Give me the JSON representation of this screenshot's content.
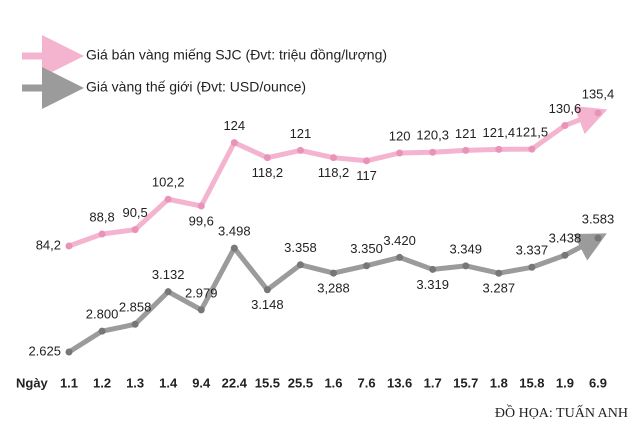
{
  "chart_data": {
    "type": "line",
    "x_label": "Ngày",
    "credit": "ĐỒ HỌA: TUẤN ANH",
    "categories": [
      "1.1",
      "1.2",
      "1.3",
      "1.4",
      "9.4",
      "22.4",
      "15.5",
      "25.5",
      "1.6",
      "7.6",
      "13.6",
      "1.7",
      "15.7",
      "1.8",
      "15.8",
      "1.9",
      "6.9"
    ],
    "series": [
      {
        "name": "Giá bán vàng miếng SJC (Đvt: triệu đồng/lượng)",
        "color": "#f4b3cf",
        "values": [
          84.2,
          88.8,
          90.5,
          102.2,
          99.6,
          124,
          118.2,
          121,
          118.2,
          117,
          120,
          120.3,
          121,
          121.4,
          121.5,
          130.6,
          135.4
        ],
        "value_labels": [
          "84,2",
          "88,8",
          "90,5",
          "102,2",
          "99,6",
          "124",
          "118,2",
          "121",
          "118,2",
          "117",
          "120",
          "120,3",
          "121",
          "121,4",
          "121,5",
          "130,6",
          "135,4"
        ]
      },
      {
        "name": "Giá vàng thế giới (Đvt: USD/ounce)",
        "color": "#9b9b9b",
        "values": [
          2625,
          2800,
          2858,
          3132,
          2979,
          3498,
          3148,
          3358,
          3288,
          3350,
          3420,
          3319,
          3349,
          3287,
          3337,
          3438,
          3583
        ],
        "value_labels": [
          "2.625",
          "2.800",
          "2.858",
          "3.132",
          "2.979",
          "3.498",
          "3.148",
          "3.358",
          "3,288",
          "3.350",
          "3.420",
          "3.319",
          "3.349",
          "3.287",
          "3.337",
          "3.438",
          "3.583"
        ]
      }
    ]
  }
}
